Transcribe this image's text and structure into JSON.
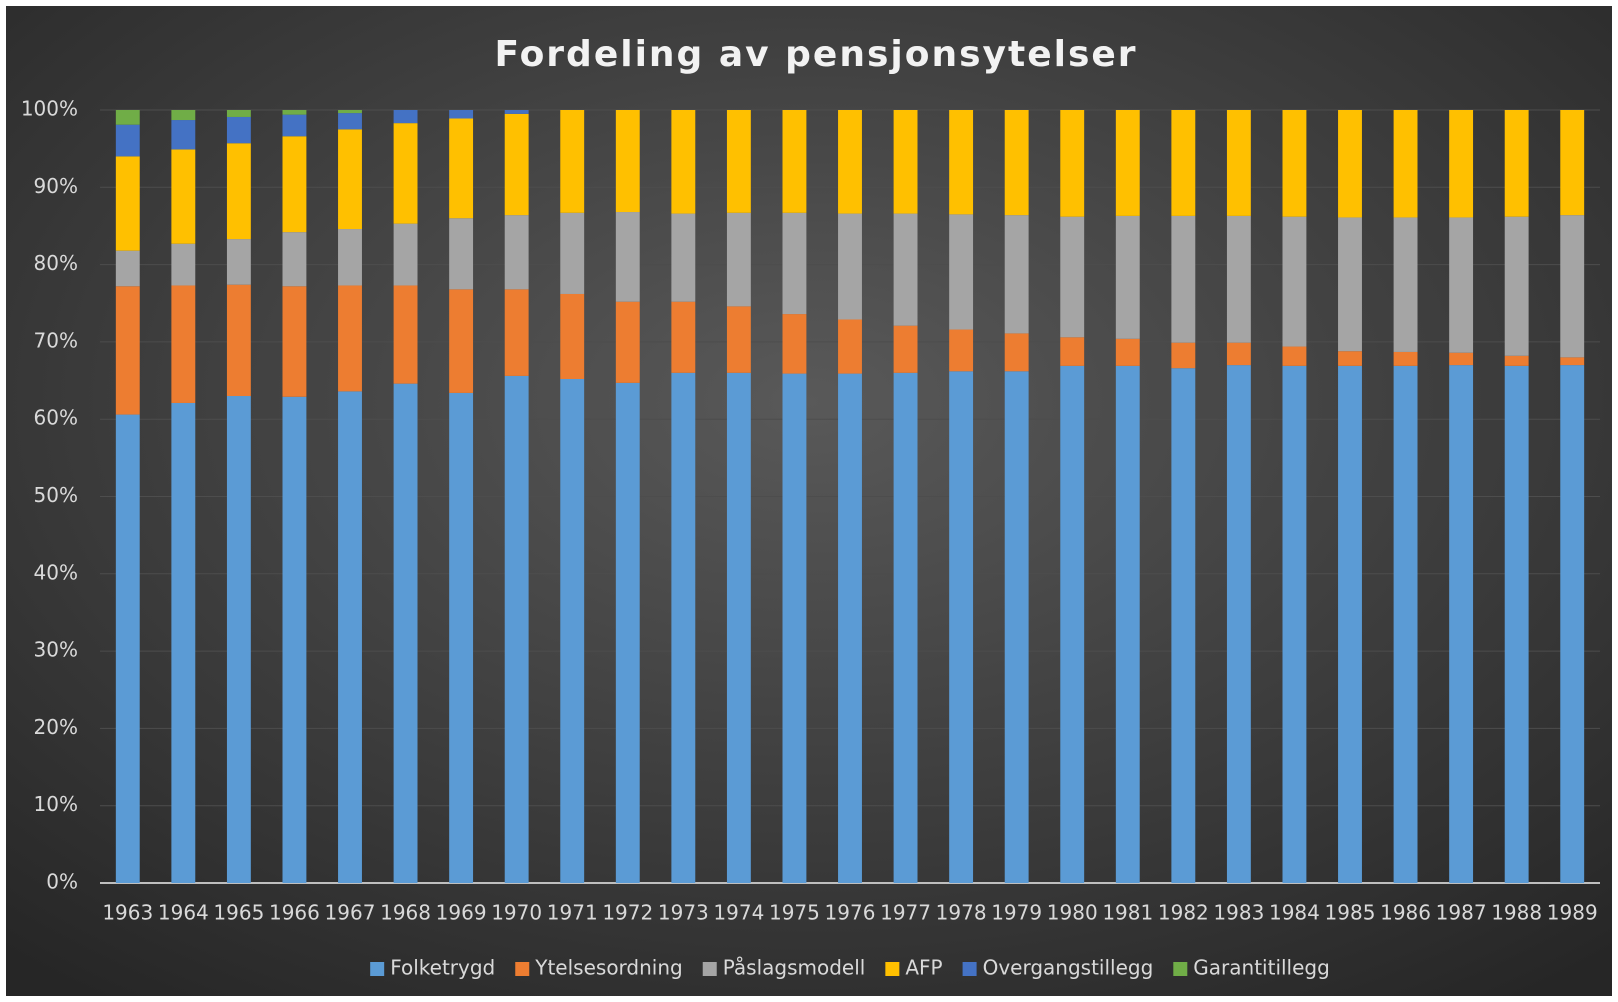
{
  "chart_data": {
    "type": "stacked_bar",
    "title": "Fordeling av pensjonsytelser",
    "categories": [
      "1963",
      "1964",
      "1965",
      "1966",
      "1967",
      "1968",
      "1969",
      "1970",
      "1971",
      "1972",
      "1973",
      "1974",
      "1975",
      "1976",
      "1977",
      "1978",
      "1979",
      "1980",
      "1981",
      "1982",
      "1983",
      "1984",
      "1985",
      "1986",
      "1987",
      "1988",
      "1989"
    ],
    "series": [
      {
        "name": "Folketrygd",
        "color": "#5b9bd5",
        "values": [
          60.6,
          62.1,
          63.0,
          62.9,
          63.6,
          64.6,
          63.4,
          65.6,
          65.2,
          64.7,
          66.0,
          66.0,
          65.9,
          65.9,
          66.0,
          66.2,
          66.2,
          66.9,
          66.9,
          66.6,
          67.0,
          66.9,
          66.9,
          66.9,
          67.0,
          66.9,
          67.0
        ]
      },
      {
        "name": "Ytelsesordning",
        "color": "#ed7d31",
        "values": [
          16.6,
          15.2,
          14.4,
          14.3,
          13.7,
          12.7,
          13.4,
          11.2,
          11.0,
          10.5,
          9.2,
          8.6,
          7.7,
          7.0,
          6.1,
          5.4,
          4.9,
          3.7,
          3.5,
          3.3,
          2.9,
          2.5,
          1.9,
          1.8,
          1.6,
          1.3,
          1.0
        ]
      },
      {
        "name": "Påslagsmodell",
        "color": "#a5a5a5",
        "values": [
          4.6,
          5.4,
          5.9,
          7.0,
          7.3,
          8.0,
          9.2,
          9.6,
          10.5,
          11.6,
          11.4,
          12.1,
          13.1,
          13.7,
          14.5,
          14.9,
          15.3,
          15.6,
          15.9,
          16.4,
          16.4,
          16.8,
          17.3,
          17.4,
          17.5,
          18.0,
          18.4
        ]
      },
      {
        "name": "AFP",
        "color": "#ffc000",
        "values": [
          12.2,
          12.2,
          12.4,
          12.4,
          12.9,
          13.0,
          12.9,
          13.1,
          13.3,
          13.2,
          13.4,
          13.3,
          13.3,
          13.4,
          13.4,
          13.5,
          13.6,
          13.8,
          13.7,
          13.7,
          13.7,
          13.8,
          13.9,
          13.9,
          13.9,
          13.8,
          13.6
        ]
      },
      {
        "name": "Overgangstillegg",
        "color": "#4472c4",
        "values": [
          4.1,
          3.8,
          3.4,
          2.8,
          2.1,
          1.7,
          1.1,
          0.5,
          0,
          0,
          0,
          0,
          0,
          0,
          0,
          0,
          0,
          0,
          0,
          0,
          0,
          0,
          0,
          0,
          0,
          0,
          0
        ]
      },
      {
        "name": "Garantitillegg",
        "color": "#70ad47",
        "values": [
          1.9,
          1.3,
          0.9,
          0.6,
          0.4,
          0,
          0,
          0,
          0,
          0,
          0,
          0,
          0,
          0,
          0,
          0,
          0,
          0,
          0,
          0,
          0,
          0,
          0,
          0,
          0,
          0,
          0
        ]
      }
    ],
    "ylim": [
      0,
      100
    ],
    "yticks": [
      {
        "value": 0,
        "label": "0%"
      },
      {
        "value": 10,
        "label": "10%"
      },
      {
        "value": 20,
        "label": "20%"
      },
      {
        "value": 30,
        "label": "30%"
      },
      {
        "value": 40,
        "label": "40%"
      },
      {
        "value": 50,
        "label": "50%"
      },
      {
        "value": 60,
        "label": "60%"
      },
      {
        "value": 70,
        "label": "70%"
      },
      {
        "value": 80,
        "label": "80%"
      },
      {
        "value": 90,
        "label": "90%"
      },
      {
        "value": 100,
        "label": "100%"
      }
    ],
    "grid": true,
    "legend": "bottom"
  }
}
